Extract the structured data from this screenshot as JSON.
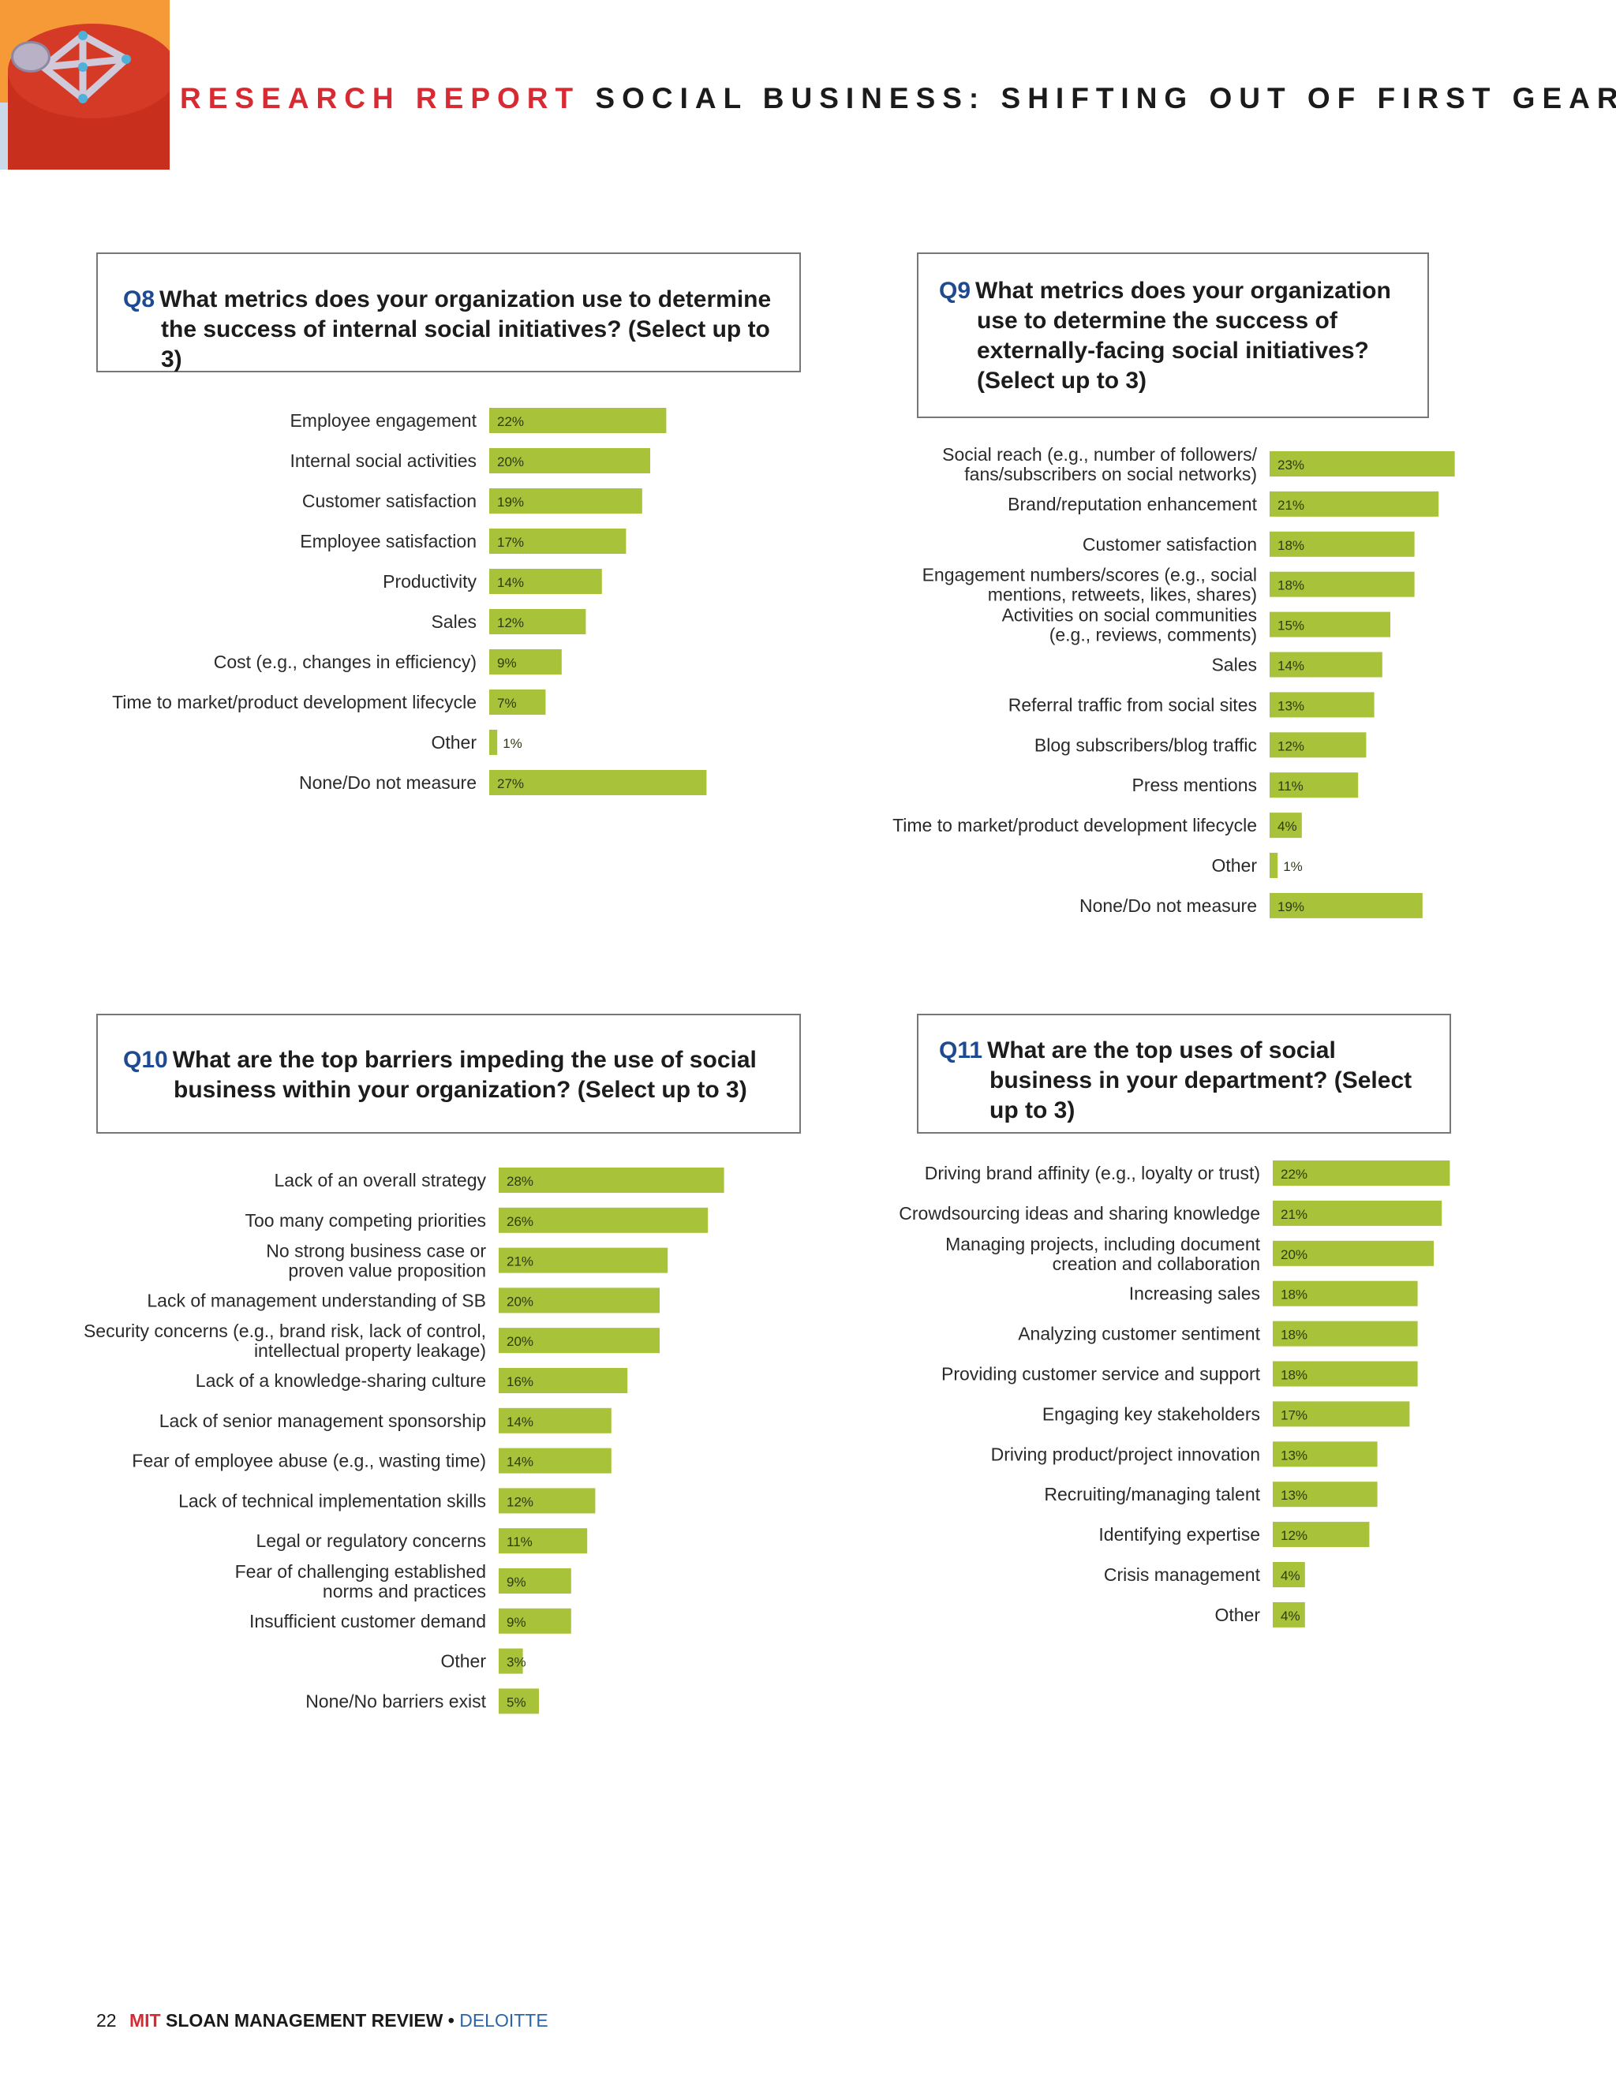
{
  "header": {
    "left": "RESEARCH REPORT",
    "right": "SOCIAL BUSINESS: SHIFTING OUT OF FIRST GEAR"
  },
  "footer": {
    "page": "22",
    "mit": "MIT",
    "smr": "SLOAN MANAGEMENT REVIEW",
    "bullet": "•",
    "partner": "DELOITTE"
  },
  "colors": {
    "bar": "#a8c23a",
    "bar_label_text": "#2e3a12",
    "accent_red": "#d62b33",
    "question_blue": "#1d4a91"
  },
  "questions": [
    {
      "num": "Q8",
      "text": "What metrics does your organization use to determine the success of internal social initiatives? (Select up to 3)"
    },
    {
      "num": "Q9",
      "text": "What metrics does your organization use to determine the success of externally-facing social initiatives? (Select up to 3)"
    },
    {
      "num": "Q10",
      "text": "What are the top barriers impeding the use of social business within your organization? (Select up to 3)"
    },
    {
      "num": "Q11",
      "text": "What are the top uses of social business in your department? (Select up to 3)"
    }
  ],
  "chart_data": [
    {
      "type": "bar",
      "orientation": "horizontal",
      "title": "Q8 What metrics does your organization use to determine the success of internal social initiatives? (Select up to 3)",
      "categories": [
        "Employee engagement",
        "Internal social activities",
        "Customer satisfaction",
        "Employee satisfaction",
        "Productivity",
        "Sales",
        "Cost (e.g., changes in efficiency)",
        "Time to market/product development lifecycle",
        "Other",
        "None/Do not measure"
      ],
      "values": [
        22,
        20,
        19,
        17,
        14,
        12,
        9,
        7,
        1,
        27
      ],
      "value_labels": [
        "22%",
        "20%",
        "19%",
        "17%",
        "14%",
        "12%",
        "9%",
        "7%",
        "1%",
        "27%"
      ],
      "unit": "%"
    },
    {
      "type": "bar",
      "orientation": "horizontal",
      "title": "Q9 What metrics does your organization use to determine the success of externally-facing social initiatives? (Select up to 3)",
      "categories": [
        "Social reach (e.g., number of followers/ fans/subscribers on social networks)",
        "Brand/reputation enhancement",
        "Customer satisfaction",
        "Engagement numbers/scores (e.g., social mentions, retweets, likes, shares)",
        "Activities on social communities (e.g., reviews, comments)",
        "Sales",
        "Referral traffic from social sites",
        "Blog subscribers/blog traffic",
        "Press mentions",
        "Time to market/product development lifecycle",
        "Other",
        "None/Do not measure"
      ],
      "values": [
        23,
        21,
        18,
        18,
        15,
        14,
        13,
        12,
        11,
        4,
        1,
        19
      ],
      "value_labels": [
        "23%",
        "21%",
        "18%",
        "18%",
        "15%",
        "14%",
        "13%",
        "12%",
        "11%",
        "4%",
        "1%",
        "19%"
      ],
      "unit": "%"
    },
    {
      "type": "bar",
      "orientation": "horizontal",
      "title": "Q10 What are the top barriers impeding the use of social business within your organization? (Select up to 3)",
      "categories": [
        "Lack of an overall strategy",
        "Too many competing priorities",
        "No strong business case or proven value proposition",
        "Lack of management understanding of SB",
        "Security concerns (e.g., brand risk, lack of control, intellectual property leakage)",
        "Lack of a knowledge-sharing culture",
        "Lack of senior management sponsorship",
        "Fear of employee abuse (e.g., wasting time)",
        "Lack of technical implementation skills",
        "Legal or regulatory concerns",
        "Fear of challenging established norms and practices",
        "Insufficient customer demand",
        "Other",
        "None/No barriers exist"
      ],
      "values": [
        28,
        26,
        21,
        20,
        20,
        16,
        14,
        14,
        12,
        11,
        9,
        9,
        3,
        5
      ],
      "value_labels": [
        "28%",
        "26%",
        "21%",
        "20%",
        "20%",
        "16%",
        "14%",
        "14%",
        "12%",
        "11%",
        "9%",
        "9%",
        "3%",
        "5%"
      ],
      "unit": "%"
    },
    {
      "type": "bar",
      "orientation": "horizontal",
      "title": "Q11 What are the top uses of social business in your department? (Select up to 3)",
      "categories": [
        "Driving brand affinity (e.g., loyalty or trust)",
        "Crowdsourcing ideas and sharing knowledge",
        "Managing projects, including document creation and collaboration",
        "Increasing sales",
        "Analyzing customer sentiment",
        "Providing customer service and support",
        "Engaging key stakeholders",
        "Driving product/project innovation",
        "Recruiting/managing talent",
        "Identifying expertise",
        "Crisis management",
        "Other"
      ],
      "values": [
        22,
        21,
        20,
        18,
        18,
        18,
        17,
        13,
        13,
        12,
        4,
        4
      ],
      "value_labels": [
        "22%",
        "21%",
        "20%",
        "18%",
        "18%",
        "18%",
        "17%",
        "13%",
        "13%",
        "12%",
        "4%",
        "4%"
      ],
      "unit": "%"
    }
  ]
}
